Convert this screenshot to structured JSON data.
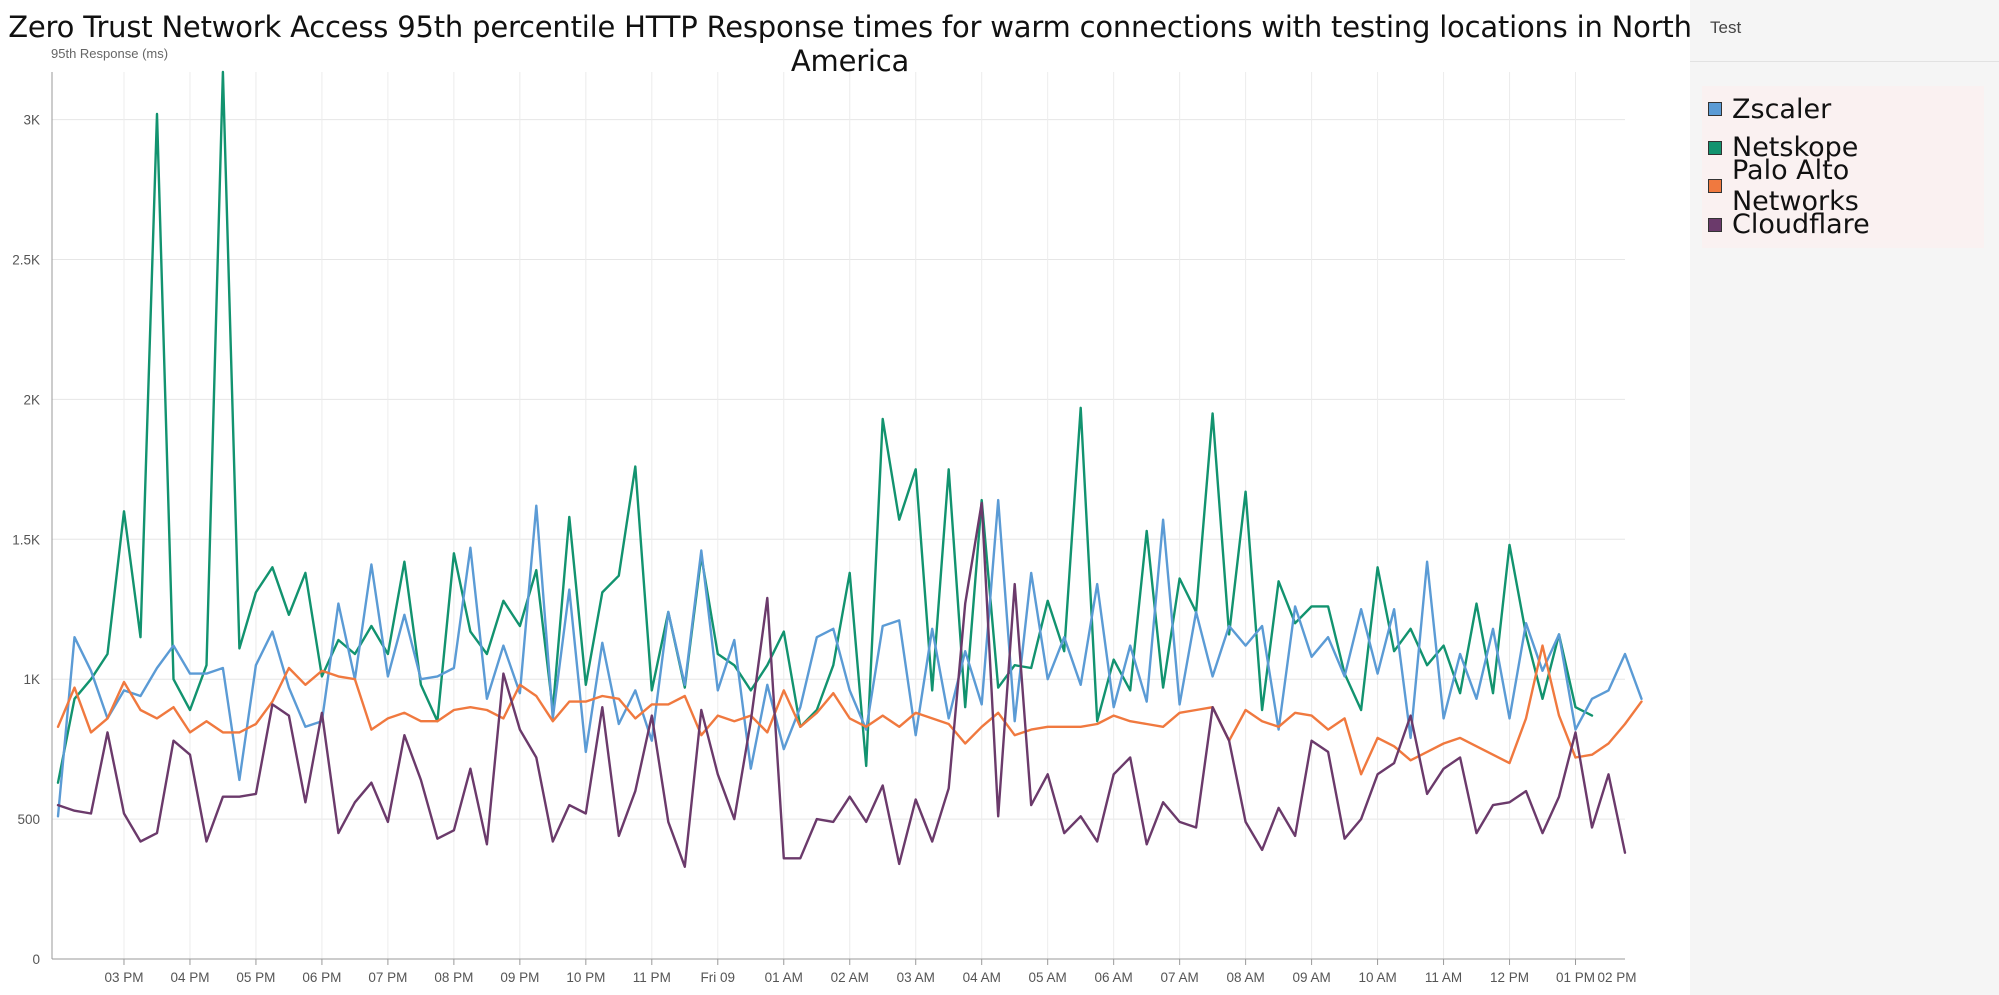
{
  "chart_data": {
    "type": "line",
    "title": "Zero Trust Network Access 95th percentile HTTP Response times for warm connections with testing locations in North America",
    "ylabel": "95th Response (ms)",
    "xlabel": "",
    "ylim": [
      0,
      3170
    ],
    "xlim": [
      0,
      95
    ],
    "grid": true,
    "legend_position": "right",
    "yticks": [
      {
        "value": 0,
        "label": "0"
      },
      {
        "value": 500,
        "label": "500"
      },
      {
        "value": 1000,
        "label": "1K"
      },
      {
        "value": 1500,
        "label": "1.5K"
      },
      {
        "value": 2000,
        "label": "2K"
      },
      {
        "value": 2500,
        "label": "2.5K"
      },
      {
        "value": 3000,
        "label": "3K"
      }
    ],
    "xticks": [
      {
        "value": 4,
        "label": "03 PM"
      },
      {
        "value": 8,
        "label": "04 PM"
      },
      {
        "value": 12,
        "label": "05 PM"
      },
      {
        "value": 16,
        "label": "06 PM"
      },
      {
        "value": 20,
        "label": "07 PM"
      },
      {
        "value": 24,
        "label": "08 PM"
      },
      {
        "value": 28,
        "label": "09 PM"
      },
      {
        "value": 32,
        "label": "10 PM"
      },
      {
        "value": 36,
        "label": "11 PM"
      },
      {
        "value": 40,
        "label": "Fri 09"
      },
      {
        "value": 44,
        "label": "01 AM"
      },
      {
        "value": 48,
        "label": "02 AM"
      },
      {
        "value": 52,
        "label": "03 AM"
      },
      {
        "value": 56,
        "label": "04 AM"
      },
      {
        "value": 60,
        "label": "05 AM"
      },
      {
        "value": 64,
        "label": "06 AM"
      },
      {
        "value": 68,
        "label": "07 AM"
      },
      {
        "value": 72,
        "label": "08 AM"
      },
      {
        "value": 76,
        "label": "09 AM"
      },
      {
        "value": 80,
        "label": "10 AM"
      },
      {
        "value": 84,
        "label": "11 AM"
      },
      {
        "value": 88,
        "label": "12 PM"
      },
      {
        "value": 92,
        "label": "01 PM"
      },
      {
        "value": 96,
        "label": "02 PM"
      }
    ],
    "series": [
      {
        "name": "Zscaler",
        "color": "#5b9bd5",
        "values": [
          510,
          1150,
          1030,
          860,
          960,
          940,
          1040,
          1120,
          1020,
          1020,
          1040,
          640,
          1050,
          1170,
          970,
          830,
          850,
          1270,
          1000,
          1410,
          1010,
          1230,
          1000,
          1010,
          1040,
          1470,
          930,
          1120,
          950,
          1620,
          860,
          1320,
          740,
          1130,
          840,
          960,
          780,
          1240,
          980,
          1460,
          960,
          1140,
          680,
          980,
          750,
          900,
          1150,
          1180,
          960,
          820,
          1190,
          1210,
          800,
          1180,
          860,
          1100,
          910,
          1640,
          850,
          1380,
          1000,
          1150,
          980,
          1340,
          900,
          1120,
          920,
          1570,
          910,
          1240,
          1010,
          1190,
          1120,
          1190,
          820,
          1260,
          1080,
          1150,
          1010,
          1250,
          1020,
          1250,
          790,
          1420,
          860,
          1090,
          930,
          1180,
          860,
          1200,
          1030,
          1160,
          820,
          930,
          960,
          1090,
          930
        ]
      },
      {
        "name": "Netskope",
        "color": "#12936f",
        "values": [
          630,
          930,
          1000,
          1090,
          1600,
          1150,
          3020,
          1000,
          890,
          1050,
          3170,
          1110,
          1310,
          1400,
          1230,
          1380,
          1010,
          1140,
          1090,
          1190,
          1090,
          1420,
          980,
          850,
          1450,
          1170,
          1090,
          1280,
          1190,
          1390,
          890,
          1580,
          980,
          1310,
          1370,
          1760,
          960,
          1240,
          970,
          1440,
          1090,
          1050,
          960,
          1050,
          1170,
          830,
          890,
          1050,
          1380,
          690,
          1930,
          1570,
          1750,
          960,
          1750,
          900,
          1640,
          970,
          1050,
          1040,
          1280,
          1100,
          1970,
          850,
          1070,
          960,
          1530,
          970,
          1360,
          1240,
          1950,
          1160,
          1670,
          890,
          1350,
          1200,
          1260,
          1260,
          1020,
          890,
          1400,
          1100,
          1180,
          1050,
          1120,
          950,
          1270,
          950,
          1480,
          1160,
          930,
          1160,
          900,
          870
        ]
      },
      {
        "name": "Palo Alto Networks",
        "color": "#f0793f",
        "values": [
          830,
          970,
          810,
          860,
          990,
          890,
          860,
          900,
          810,
          850,
          810,
          810,
          840,
          920,
          1040,
          980,
          1030,
          1010,
          1000,
          820,
          860,
          880,
          850,
          850,
          890,
          900,
          890,
          860,
          980,
          940,
          850,
          920,
          920,
          940,
          930,
          860,
          910,
          910,
          940,
          800,
          870,
          850,
          870,
          810,
          960,
          830,
          880,
          950,
          860,
          830,
          870,
          830,
          880,
          860,
          840,
          770,
          830,
          880,
          800,
          820,
          830,
          830,
          830,
          840,
          870,
          850,
          840,
          830,
          880,
          890,
          900,
          780,
          890,
          850,
          830,
          880,
          870,
          820,
          860,
          660,
          790,
          760,
          710,
          740,
          770,
          790,
          760,
          730,
          700,
          860,
          1120,
          870,
          720,
          730,
          770,
          840,
          920
        ]
      },
      {
        "name": "Cloudflare",
        "color": "#6b3a6b",
        "values": [
          550,
          530,
          520,
          810,
          520,
          420,
          450,
          780,
          730,
          420,
          580,
          580,
          590,
          910,
          870,
          560,
          880,
          450,
          560,
          630,
          490,
          800,
          640,
          430,
          460,
          680,
          410,
          1020,
          820,
          720,
          420,
          550,
          520,
          900,
          440,
          600,
          870,
          490,
          330,
          890,
          660,
          500,
          850,
          1290,
          360,
          360,
          500,
          490,
          580,
          490,
          620,
          340,
          570,
          420,
          610,
          1270,
          1630,
          510,
          1340,
          550,
          660,
          450,
          510,
          420,
          660,
          720,
          410,
          560,
          490,
          470,
          900,
          780,
          490,
          390,
          540,
          440,
          780,
          740,
          430,
          500,
          660,
          700,
          870,
          590,
          680,
          720,
          450,
          550,
          560,
          600,
          450,
          580,
          810,
          470,
          660,
          380
        ]
      }
    ]
  },
  "panel": {
    "title": "Test"
  }
}
